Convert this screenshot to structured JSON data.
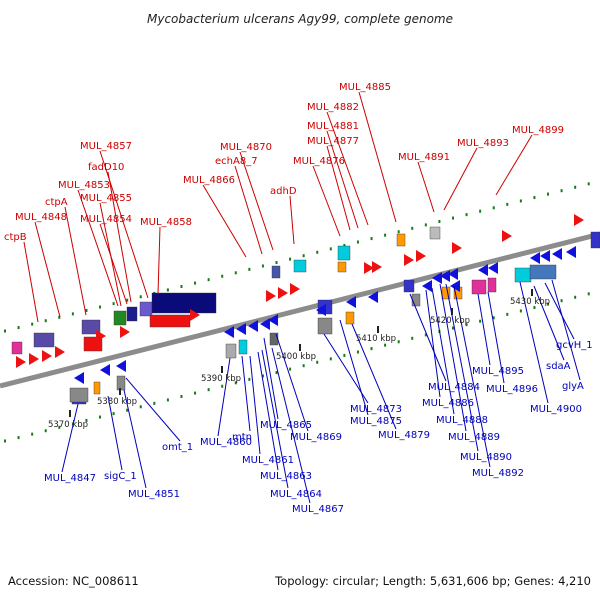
{
  "title": "Mycobacterium ulcerans Agy99, complete genome",
  "footer": {
    "accession": "Accession: NC_008611",
    "summary": "Topology: circular; Length: 5,631,606 bp; Genes: 4,210"
  },
  "colors": {
    "backbone": "#8c8c8c",
    "forward_label": "#cc0000",
    "reverse_label": "#0000bb",
    "tick": "#1a7a1a"
  },
  "kbp_markers": [
    "5370 kbp",
    "5380 kbp",
    "5390 kbp",
    "5400 kbp",
    "5410 kbp",
    "5420 kbp",
    "5430 kbp"
  ],
  "forward_genes": [
    "ctpB",
    "MUL_4848",
    "ctpA",
    "MUL_4853",
    "fadD10",
    "MUL_4857",
    "MUL_4855",
    "MUL_4854",
    "MUL_4858",
    "MUL_4866",
    "echA8_7",
    "MUL_4870",
    "adhD",
    "MUL_4876",
    "MUL_4877",
    "MUL_4881",
    "MUL_4882",
    "MUL_4885",
    "MUL_4891",
    "MUL_4893",
    "MUL_4899"
  ],
  "reverse_genes": [
    "MUL_4847",
    "sigC_1",
    "MUL_4851",
    "omt_1",
    "MUL_4860",
    "mtn",
    "MUL_4861",
    "MUL_4863",
    "MUL_4864",
    "MUL_4865",
    "MUL_4867",
    "MUL_4869",
    "MUL_4873",
    "MUL_4875",
    "MUL_4879",
    "MUL_4884",
    "MUL_4886",
    "MUL_4888",
    "MUL_4889",
    "MUL_4890",
    "MUL_4892",
    "MUL_4895",
    "MUL_4896",
    "sdaA",
    "gcvH_1",
    "glyA",
    "MUL_4900"
  ]
}
